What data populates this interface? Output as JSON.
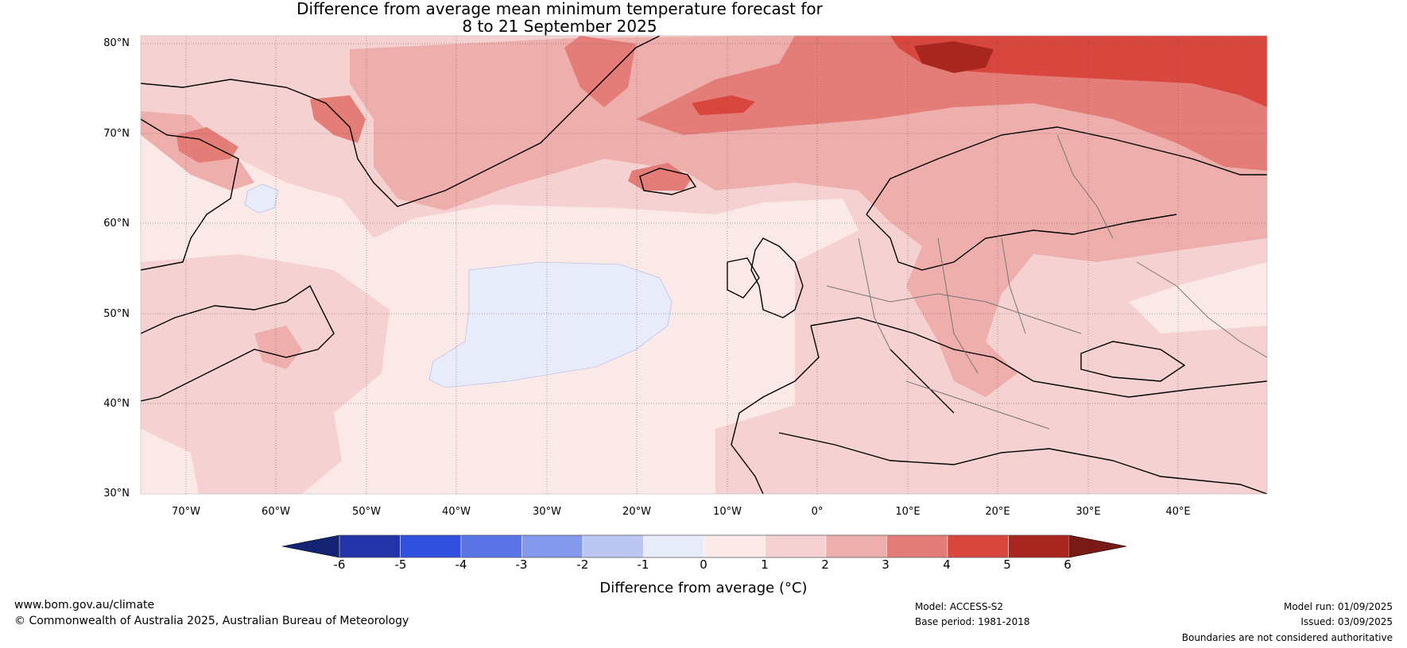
{
  "title": {
    "line1": "Difference from average mean minimum temperature forecast for",
    "line2": "8 to 21 September 2025"
  },
  "map": {
    "lat_labels": [
      "80°N",
      "70°N",
      "60°N",
      "50°N",
      "40°N",
      "30°N"
    ],
    "lon_labels": [
      "70°W",
      "60°W",
      "50°W",
      "40°W",
      "30°W",
      "20°W",
      "10°W",
      "0°",
      "10°E",
      "20°E",
      "30°E",
      "40°E"
    ]
  },
  "colorbar": {
    "ticks": [
      "-6",
      "-5",
      "-4",
      "-3",
      "-2",
      "-1",
      "0",
      "1",
      "2",
      "3",
      "4",
      "5",
      "6"
    ],
    "colors": [
      "#2434a8",
      "#2f4fdc",
      "#5a74e6",
      "#8498ec",
      "#bcc6f3",
      "#e8ebfa",
      "#fbe9e8",
      "#f5d2d1",
      "#edaeac",
      "#e47c77",
      "#d8463e",
      "#a9261f"
    ],
    "under_color": "#162373",
    "over_color": "#791a17",
    "label": "Difference from average (°C)"
  },
  "footer": {
    "website": "www.bom.gov.au/climate",
    "copyright": "© Commonwealth of Australia 2025, Australian Bureau of Meteorology",
    "model": "Model: ACCESS-S2",
    "base_period": "Base period: 1981-2018",
    "model_run": "Model run: 01/09/2025",
    "issued": "Issued: 03/09/2025",
    "disclaimer": "Boundaries are not considered authoritative"
  }
}
